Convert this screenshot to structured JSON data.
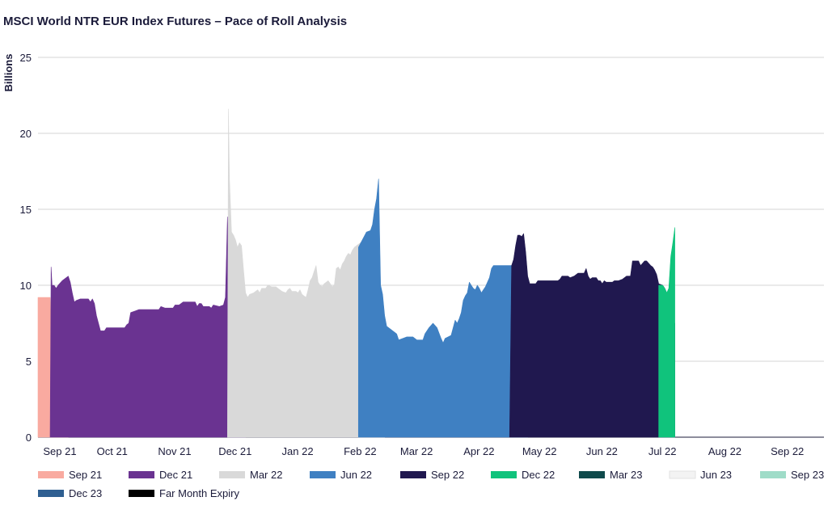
{
  "chart_data": {
    "type": "area",
    "title": "MSCI World NTR EUR Index Futures – Pace of Roll Analysis",
    "ylabel": "Billions",
    "xlabel": "",
    "ylim": [
      0,
      25
    ],
    "yticks": [
      0,
      5,
      10,
      15,
      20,
      25
    ],
    "xlim": [
      0,
      390
    ],
    "xtick_positions": [
      4,
      30,
      61,
      91,
      122,
      153,
      181,
      212,
      242,
      273,
      303,
      334,
      365
    ],
    "xtick_labels": [
      "Sep 21",
      "Oct 21",
      "Nov 21",
      "Dec 21",
      "Jan 22",
      "Feb 22",
      "Mar 22",
      "Apr 22",
      "May 22",
      "Jun 22",
      "Jul 22",
      "Aug 22",
      "Sep 22"
    ],
    "grid": "horizontal",
    "legend_position": "bottom",
    "series": [
      {
        "name": "Sep 21",
        "color": "#f9aaa0",
        "points": [
          [
            0,
            9.2
          ],
          [
            6,
            9.2
          ],
          [
            7,
            6
          ],
          [
            8,
            3.5
          ],
          [
            9,
            2.5
          ],
          [
            10,
            2
          ],
          [
            12,
            1.5
          ],
          [
            14,
            0.3
          ],
          [
            15,
            0
          ]
        ]
      },
      {
        "name": "Dec 21",
        "color": "#6a3391",
        "points": [
          [
            6,
            0
          ],
          [
            6.5,
            11.2
          ],
          [
            7,
            10
          ],
          [
            8,
            10
          ],
          [
            9,
            9.8
          ],
          [
            10,
            10
          ],
          [
            12,
            10.3
          ],
          [
            14,
            10.5
          ],
          [
            15,
            10.6
          ],
          [
            16,
            10.2
          ],
          [
            17,
            9.5
          ],
          [
            18,
            8.9
          ],
          [
            19,
            9
          ],
          [
            21,
            9.1
          ],
          [
            25,
            9.1
          ],
          [
            26,
            8.9
          ],
          [
            27,
            9.1
          ],
          [
            28,
            8.8
          ],
          [
            29,
            8
          ],
          [
            31,
            7
          ],
          [
            33,
            7
          ],
          [
            34,
            7.2
          ],
          [
            43,
            7.2
          ],
          [
            44,
            7.4
          ],
          [
            45,
            7.5
          ],
          [
            46,
            8.2
          ],
          [
            48,
            8.3
          ],
          [
            50,
            8.4
          ],
          [
            60,
            8.4
          ],
          [
            61,
            8.6
          ],
          [
            63,
            8.5
          ],
          [
            67,
            8.5
          ],
          [
            68,
            8.7
          ],
          [
            70,
            8.7
          ],
          [
            72,
            8.9
          ],
          [
            78,
            8.9
          ],
          [
            79,
            8.6
          ],
          [
            80,
            8.8
          ],
          [
            81,
            8.8
          ],
          [
            82,
            8.6
          ],
          [
            85,
            8.6
          ],
          [
            86,
            8.5
          ],
          [
            87,
            8.7
          ],
          [
            90,
            8.6
          ],
          [
            92,
            8.7
          ],
          [
            93,
            9.2
          ],
          [
            94,
            14.5
          ],
          [
            95,
            11
          ],
          [
            95.5,
            5.8
          ],
          [
            96,
            5.2
          ],
          [
            97,
            4.5
          ],
          [
            98,
            3.5
          ],
          [
            100,
            3.4
          ],
          [
            101,
            2
          ],
          [
            102,
            1
          ],
          [
            103,
            0
          ]
        ]
      },
      {
        "name": "Mar 22",
        "color": "#d9d9d9",
        "points": [
          [
            94,
            0
          ],
          [
            94.5,
            21.6
          ],
          [
            95,
            17
          ],
          [
            96,
            13.5
          ],
          [
            97,
            13.3
          ],
          [
            98,
            13
          ],
          [
            99,
            12.5
          ],
          [
            100,
            12.8
          ],
          [
            101,
            12.6
          ],
          [
            102,
            11
          ],
          [
            103,
            9.5
          ],
          [
            104,
            9.2
          ],
          [
            105,
            9.4
          ],
          [
            107,
            9.5
          ],
          [
            109,
            9.7
          ],
          [
            110,
            9.5
          ],
          [
            111,
            9.8
          ],
          [
            113,
            9.8
          ],
          [
            114,
            10
          ],
          [
            116,
            9.9
          ],
          [
            118,
            9.9
          ],
          [
            120,
            9.7
          ],
          [
            121,
            9.6
          ],
          [
            123,
            9.5
          ],
          [
            124,
            9.7
          ],
          [
            125,
            9.8
          ],
          [
            126,
            9.6
          ],
          [
            128,
            9.6
          ],
          [
            129,
            9.5
          ],
          [
            130,
            9.7
          ],
          [
            131,
            9.4
          ],
          [
            132,
            9.3
          ],
          [
            133,
            9.2
          ],
          [
            134,
            9.7
          ],
          [
            135,
            10.3
          ],
          [
            136,
            10.5
          ],
          [
            137,
            10.9
          ],
          [
            138,
            11.3
          ],
          [
            139,
            10.2
          ],
          [
            140,
            10
          ],
          [
            141,
            9.9
          ],
          [
            142,
            10.1
          ],
          [
            144,
            10.3
          ],
          [
            145,
            10.1
          ],
          [
            146,
            9.9
          ],
          [
            147,
            10
          ],
          [
            148,
            11.1
          ],
          [
            149,
            11.2
          ],
          [
            150,
            11
          ],
          [
            151,
            11.4
          ],
          [
            152,
            11.6
          ],
          [
            153,
            11.9
          ],
          [
            154,
            12.1
          ],
          [
            155,
            12
          ],
          [
            156,
            12.3
          ],
          [
            157,
            12.5
          ],
          [
            158,
            12.6
          ],
          [
            159,
            12.7
          ],
          [
            160,
            12.8
          ],
          [
            161,
            12.6
          ],
          [
            162,
            12.7
          ],
          [
            163,
            12.5
          ],
          [
            164,
            12.2
          ],
          [
            165,
            11.3
          ],
          [
            166,
            10.5
          ],
          [
            167,
            9.3
          ],
          [
            168,
            8.3
          ],
          [
            169,
            8
          ],
          [
            170,
            8
          ],
          [
            172,
            0
          ]
        ]
      },
      {
        "name": "Jun 22",
        "color": "#3f80c2",
        "points": [
          [
            159,
            12.5
          ],
          [
            163,
            13.5
          ],
          [
            165,
            13.6
          ],
          [
            166,
            14
          ],
          [
            167,
            15
          ],
          [
            168,
            15.7
          ],
          [
            169,
            17
          ],
          [
            170,
            10
          ],
          [
            171,
            9.4
          ],
          [
            172,
            8
          ],
          [
            173,
            7.3
          ],
          [
            174,
            7.2
          ],
          [
            175,
            7.1
          ],
          [
            176,
            7
          ],
          [
            177,
            6.9
          ],
          [
            178,
            6.8
          ],
          [
            179,
            6.4
          ],
          [
            181,
            6.5
          ],
          [
            183,
            6.6
          ],
          [
            186,
            6.6
          ],
          [
            188,
            6.4
          ],
          [
            191,
            6.4
          ],
          [
            192,
            6.8
          ],
          [
            194,
            7.2
          ],
          [
            196,
            7.5
          ],
          [
            198,
            7.2
          ],
          [
            200,
            6.5
          ],
          [
            201,
            6.2
          ],
          [
            202,
            6.5
          ],
          [
            205,
            6.7
          ],
          [
            206,
            7.2
          ],
          [
            207,
            7.7
          ],
          [
            208,
            7.5
          ],
          [
            209,
            7.8
          ],
          [
            210,
            8.2
          ],
          [
            211,
            9
          ],
          [
            212,
            9.3
          ],
          [
            213,
            9.5
          ],
          [
            214,
            10.2
          ],
          [
            215,
            10
          ],
          [
            216,
            9.8
          ],
          [
            217,
            9.7
          ],
          [
            218,
            10
          ],
          [
            219,
            9.8
          ],
          [
            220,
            9.5
          ],
          [
            221,
            9.7
          ],
          [
            222,
            9.9
          ],
          [
            223,
            10.2
          ],
          [
            224,
            10.5
          ],
          [
            225,
            11.1
          ],
          [
            226,
            11.3
          ],
          [
            235,
            11.3
          ],
          [
            236,
            7.4
          ],
          [
            237,
            6.5
          ],
          [
            238,
            5.2
          ],
          [
            239,
            4
          ],
          [
            240,
            3.5
          ],
          [
            241,
            3.3
          ],
          [
            242,
            1.8
          ],
          [
            243,
            0
          ]
        ]
      },
      {
        "name": "Sep 22",
        "color": "#20184f",
        "points": [
          [
            234,
            0
          ],
          [
            235,
            11.3
          ],
          [
            236,
            11.7
          ],
          [
            237,
            12.6
          ],
          [
            238,
            13.3
          ],
          [
            239,
            13.3
          ],
          [
            240,
            13.2
          ],
          [
            241,
            13.4
          ],
          [
            242,
            12.2
          ],
          [
            243,
            10.6
          ],
          [
            244,
            10.1
          ],
          [
            247,
            10.1
          ],
          [
            248,
            10.3
          ],
          [
            258,
            10.3
          ],
          [
            259,
            10.4
          ],
          [
            260,
            10.6
          ],
          [
            263,
            10.6
          ],
          [
            264,
            10.5
          ],
          [
            266,
            10.6
          ],
          [
            268,
            10.8
          ],
          [
            271,
            10.8
          ],
          [
            272,
            11.1
          ],
          [
            273,
            10.6
          ],
          [
            274,
            10.4
          ],
          [
            275,
            10.5
          ],
          [
            277,
            10.5
          ],
          [
            278,
            10.3
          ],
          [
            279,
            10.3
          ],
          [
            280,
            10.1
          ],
          [
            281,
            10.3
          ],
          [
            282,
            10.2
          ],
          [
            285,
            10.2
          ],
          [
            286,
            10.3
          ],
          [
            288,
            10.3
          ],
          [
            290,
            10.4
          ],
          [
            292,
            10.6
          ],
          [
            294,
            10.6
          ],
          [
            295,
            11.6
          ],
          [
            296,
            11.6
          ],
          [
            298,
            11.6
          ],
          [
            299,
            11.3
          ],
          [
            301,
            11.6
          ],
          [
            302,
            11.6
          ],
          [
            304,
            11.3
          ],
          [
            305,
            11.2
          ],
          [
            306,
            11
          ],
          [
            307,
            10.7
          ],
          [
            308,
            10.1
          ],
          [
            310,
            10
          ],
          [
            311,
            9.8
          ],
          [
            312,
            9.5
          ],
          [
            313,
            8
          ],
          [
            315,
            7.6
          ],
          [
            316,
            7.5
          ],
          [
            316,
            0
          ]
        ]
      },
      {
        "name": "Dec 22",
        "color": "#10c37c",
        "points": [
          [
            308,
            0
          ],
          [
            308,
            10
          ],
          [
            310,
            10
          ],
          [
            311,
            9.8
          ],
          [
            312,
            9.5
          ],
          [
            313,
            9.8
          ],
          [
            314,
            11.9
          ],
          [
            315,
            12.8
          ],
          [
            316,
            13.8
          ],
          [
            316,
            0
          ]
        ]
      },
      {
        "name": "Mar 23",
        "color": "#0f4a4c",
        "points": []
      },
      {
        "name": "Jun 23",
        "color": "#f3f3f3",
        "points": []
      },
      {
        "name": "Sep 23",
        "color": "#9fdcc8",
        "points": []
      },
      {
        "name": "Dec 23",
        "color": "#2f5f91",
        "points": []
      },
      {
        "name": "Far Month Expiry",
        "color": "#000000",
        "points": []
      }
    ]
  }
}
